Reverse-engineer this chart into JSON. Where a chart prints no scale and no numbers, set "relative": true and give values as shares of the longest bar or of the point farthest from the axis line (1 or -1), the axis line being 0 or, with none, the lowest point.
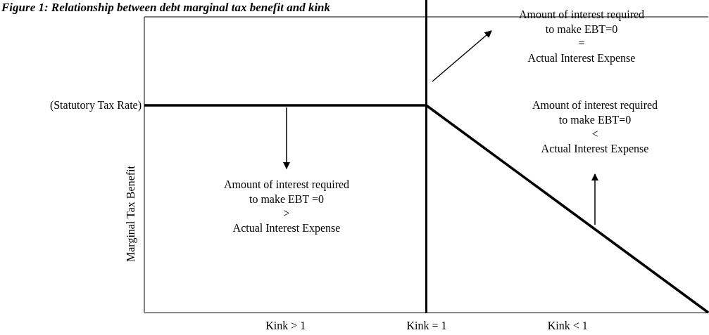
{
  "chart_data": {
    "type": "line",
    "title": "Figure 1: Relationship between debt marginal tax benefit and kink",
    "ylabel": "Marginal Tax Benefit",
    "relative": true,
    "categories": [
      null,
      "Kink > 1",
      "Kink = 1",
      "Kink < 1",
      null
    ],
    "series": [
      {
        "color": "#000000",
        "values": [
          1,
          1,
          1,
          0.5,
          0
        ]
      }
    ],
    "ref_lines": [
      {
        "axis": "x",
        "value": "Kink = 1",
        "color": "#000000"
      }
    ],
    "annotations": [
      "(Statutory Tax Rate)",
      "Amount of interest required\nto make EBT =0\n>\nActual Interest Expense",
      "Amount of interest required\nto make EBT=0\n=\nActual Interest Expense",
      "Amount of interest required\nto make EBT=0\n<\nActual Interest Expense"
    ],
    "marker": "none",
    "line_style": "solid"
  }
}
